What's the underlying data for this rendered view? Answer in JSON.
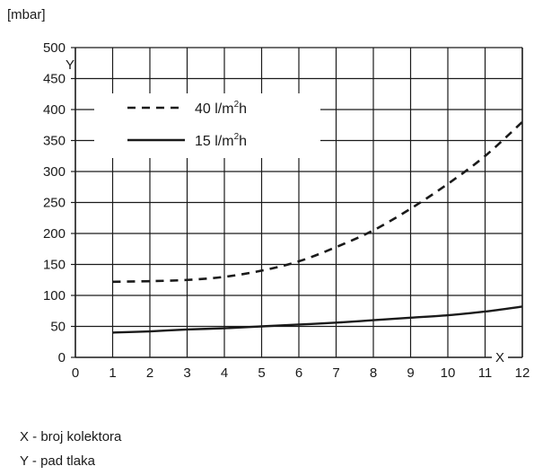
{
  "chart_data": {
    "type": "line",
    "unit_label": "[mbar]",
    "x_axis_letter": "X",
    "y_axis_letter": "Y",
    "xlim": [
      0,
      12
    ],
    "ylim": [
      0,
      500
    ],
    "x_ticks": [
      "0",
      "1",
      "2",
      "3",
      "4",
      "5",
      "6",
      "7",
      "8",
      "9",
      "10",
      "11",
      "12"
    ],
    "y_ticks": [
      "0",
      "50",
      "100",
      "150",
      "200",
      "250",
      "300",
      "350",
      "400",
      "450",
      "500"
    ],
    "grid": true,
    "legend_position": "top-left",
    "series": [
      {
        "name_main": "40 l/m",
        "name_sup": "2",
        "name_tail": "h",
        "style": "dashed",
        "color": "#1a1a1a",
        "x": [
          1,
          2,
          3,
          4,
          5,
          6,
          7,
          8,
          9,
          10,
          11,
          12
        ],
        "y": [
          122,
          123,
          125,
          130,
          140,
          155,
          178,
          205,
          240,
          280,
          325,
          380
        ]
      },
      {
        "name_main": "15 l/m",
        "name_sup": "2",
        "name_tail": "h",
        "style": "solid",
        "color": "#1a1a1a",
        "x": [
          1,
          2,
          3,
          4,
          5,
          6,
          7,
          8,
          9,
          10,
          11,
          12
        ],
        "y": [
          40,
          42,
          45,
          47,
          50,
          53,
          56,
          60,
          64,
          68,
          74,
          82
        ]
      }
    ]
  },
  "captions": {
    "x_caption": "X - broj kolektora",
    "y_caption": "Y - pad tlaka"
  }
}
